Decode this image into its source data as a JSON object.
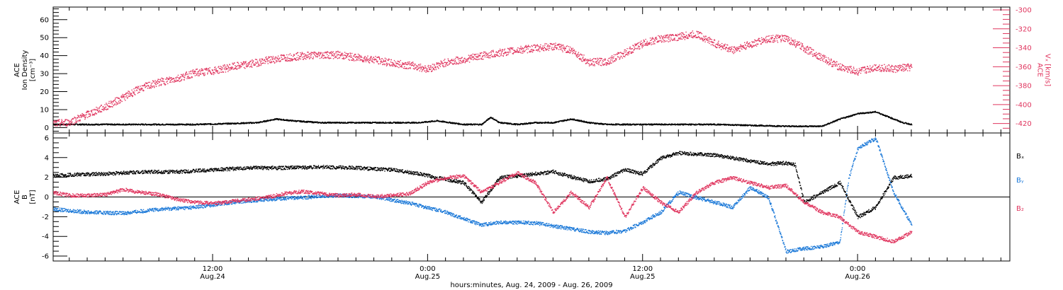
{
  "colors": {
    "black": "#000000",
    "magenta": "#e0365f",
    "blue": "#1a78d8"
  },
  "chart_data": {
    "type": "scatter",
    "xlabel": "hours:minutes, Aug. 24, 2009 - Aug. 26, 2009",
    "x_tick_labels": [
      {
        "hours": 12,
        "time": "12:00",
        "date": "Aug.24"
      },
      {
        "hours": 24,
        "time": "0:00",
        "date": "Aug.25"
      },
      {
        "hours": 36,
        "time": "12:00",
        "date": "Aug.25"
      },
      {
        "hours": 48,
        "time": "0:00",
        "date": "Aug.26"
      }
    ],
    "xlim_hours": [
      3.1,
      56.5
    ],
    "panels": [
      {
        "name": "top",
        "ylabel_left": [
          "ACE",
          "Ion Density",
          "[cm⁻³]"
        ],
        "ylim_left": [
          -3,
          67
        ],
        "yticks_left": [
          0,
          10,
          20,
          30,
          40,
          50,
          60
        ],
        "ylabel_right": [
          "ACE",
          "Vₓ [km/s]"
        ],
        "ylim_right": [
          -430,
          -297
        ],
        "yticks_right": [
          -420,
          -400,
          -380,
          -360,
          -340,
          -320,
          -300
        ],
        "series": [
          {
            "axis": "left",
            "color": "black",
            "hours": [
              3.1,
              5,
              7,
              9,
              11,
              13,
              14.5,
              15.5,
              16.5,
              18,
              20,
              22,
              23.5,
              24.5,
              26,
              27,
              27.5,
              28,
              29,
              30,
              31,
              32,
              33,
              34,
              36,
              38,
              40,
              42,
              44,
              46,
              46.5,
              47,
              48,
              49,
              50,
              50.5,
              51
            ],
            "values": [
              2,
              2,
              2,
              2,
              2,
              2.5,
              3,
              5,
              4,
              3,
              3,
              3,
              3,
              4,
              2,
              2,
              6,
              3,
              2,
              3,
              3,
              5,
              3,
              2,
              2,
              2,
              2,
              1.5,
              1,
              1,
              3,
              5,
              8,
              9,
              5,
              3,
              2
            ]
          },
          {
            "axis": "right",
            "color": "magenta",
            "hours": [
              3.1,
              4,
              5,
              6,
              7,
              8,
              9,
              10,
              11,
              12,
              13,
              14,
              15,
              16,
              17,
              18,
              19,
              20,
              21,
              22,
              23,
              24,
              25,
              26,
              27,
              28,
              29,
              30,
              31,
              32,
              33,
              34,
              35,
              36,
              37,
              38,
              39,
              40,
              41,
              42,
              43,
              44,
              45,
              46,
              47,
              48,
              49,
              50,
              51
            ],
            "values": [
              -420,
              -418,
              -410,
              -402,
              -392,
              -382,
              -376,
              -372,
              -366,
              -364,
              -360,
              -357,
              -353,
              -350,
              -348,
              -347,
              -347,
              -350,
              -352,
              -356,
              -358,
              -362,
              -355,
              -352,
              -348,
              -345,
              -342,
              -340,
              -338,
              -342,
              -355,
              -354,
              -345,
              -335,
              -330,
              -328,
              -325,
              -335,
              -342,
              -336,
              -330,
              -330,
              -340,
              -350,
              -360,
              -365,
              -360,
              -362,
              -360
            ]
          }
        ]
      },
      {
        "name": "bottom",
        "ylabel_left": [
          "ACE",
          "B",
          "[nT]"
        ],
        "ylim_left": [
          -6.5,
          6.5
        ],
        "yticks_left": [
          -6,
          -4,
          -2,
          0,
          2,
          4,
          6
        ],
        "legend": [
          {
            "label": "Bₓ",
            "color": "black"
          },
          {
            "label": "Bᵧ",
            "color": "blue"
          },
          {
            "label": "B₂",
            "color": "magenta"
          }
        ],
        "series": [
          {
            "name": "Bx",
            "color": "black",
            "hours": [
              3.1,
              4,
              6,
              8,
              10,
              12,
              14,
              16,
              18,
              20,
              22,
              23.5,
              24.5,
              26,
              27,
              28,
              30,
              31,
              32,
              33,
              34,
              35,
              36,
              37,
              38,
              39,
              40,
              41,
              42,
              43,
              44,
              44.5,
              45,
              46,
              47,
              48,
              49,
              50,
              51
            ],
            "values": [
              2.2,
              2.3,
              2.4,
              2.6,
              2.6,
              2.8,
              3.0,
              3.0,
              3.1,
              3.0,
              2.8,
              2.4,
              2.0,
              1.5,
              -0.5,
              2.0,
              2.4,
              2.6,
              2.1,
              1.6,
              1.9,
              2.8,
              2.4,
              4.0,
              4.5,
              4.4,
              4.3,
              4.0,
              3.7,
              3.4,
              3.5,
              3.3,
              -0.5,
              0.5,
              1.5,
              -2.0,
              -1.0,
              2.0,
              2.2
            ]
          },
          {
            "name": "By",
            "color": "blue",
            "hours": [
              3.1,
              5,
              7,
              9,
              11,
              13,
              15,
              17,
              19,
              21,
              23,
              25,
              27,
              28,
              30,
              32,
              33,
              34,
              35,
              36,
              37,
              38,
              39,
              40,
              41,
              42,
              43,
              44,
              45,
              46,
              47,
              47.5,
              48,
              49,
              50,
              51
            ],
            "values": [
              -1.2,
              -1.5,
              -1.6,
              -1.2,
              -1.0,
              -0.5,
              -0.2,
              0.0,
              0.2,
              0.1,
              -0.6,
              -1.5,
              -2.8,
              -2.5,
              -2.6,
              -3.2,
              -3.5,
              -3.6,
              -3.4,
              -2.5,
              -1.5,
              0.5,
              0.0,
              -0.5,
              -1.0,
              1.0,
              0.0,
              -5.5,
              -5.2,
              -5.0,
              -4.5,
              2.0,
              5.0,
              6.0,
              0.5,
              -2.8
            ]
          },
          {
            "name": "Bz",
            "color": "magenta",
            "hours": [
              3.1,
              4,
              5,
              6,
              7,
              8,
              9,
              10,
              11,
              12,
              13,
              14,
              15,
              16,
              17,
              18,
              19,
              20,
              21,
              22,
              23,
              24,
              25,
              26,
              27,
              28,
              29,
              30,
              31,
              32,
              33,
              34,
              35,
              36,
              37,
              38,
              39,
              40,
              41,
              42,
              43,
              44,
              45,
              46,
              47,
              48,
              49,
              50,
              51
            ],
            "values": [
              0.5,
              0.2,
              0.2,
              0.3,
              0.8,
              0.5,
              0.3,
              -0.2,
              -0.5,
              -0.6,
              -0.4,
              -0.2,
              0.0,
              0.4,
              0.6,
              0.4,
              0.2,
              0.3,
              0.1,
              0.2,
              0.4,
              1.5,
              2.0,
              2.2,
              0.5,
              1.5,
              2.5,
              1.5,
              -1.5,
              0.5,
              -1.0,
              2.0,
              -2.0,
              1.0,
              -0.5,
              -1.5,
              0.5,
              1.5,
              2.0,
              1.5,
              1.0,
              1.2,
              -0.5,
              -1.5,
              -2.0,
              -3.5,
              -4.0,
              -4.5,
              -3.5
            ]
          }
        ]
      }
    ]
  }
}
